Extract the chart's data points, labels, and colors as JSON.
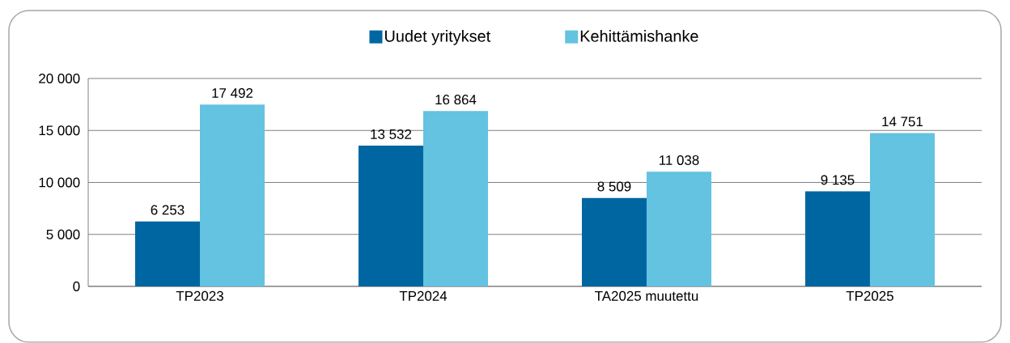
{
  "chart_data": {
    "type": "bar",
    "categories": [
      "TP2023",
      "TP2024",
      "TA2025 muutettu",
      "TP2025"
    ],
    "series": [
      {
        "name": "Uudet yritykset",
        "color": "#0066a1",
        "values": [
          6253,
          13532,
          8509,
          9135
        ],
        "value_labels": [
          "6 253",
          "13 532",
          "8 509",
          "9 135"
        ]
      },
      {
        "name": "Kehittämishanke",
        "color": "#63c3e0",
        "values": [
          17492,
          16864,
          11038,
          14751
        ],
        "value_labels": [
          "17 492",
          "16 864",
          "11 038",
          "14 751"
        ]
      }
    ],
    "ylim": [
      0,
      20000
    ],
    "yticks": [
      {
        "value": 0,
        "label": "0"
      },
      {
        "value": 5000,
        "label": "5 000"
      },
      {
        "value": 10000,
        "label": "10 000"
      },
      {
        "value": 15000,
        "label": "15 000"
      },
      {
        "value": 20000,
        "label": "20 000"
      }
    ],
    "grid": "y",
    "legend": "top"
  }
}
